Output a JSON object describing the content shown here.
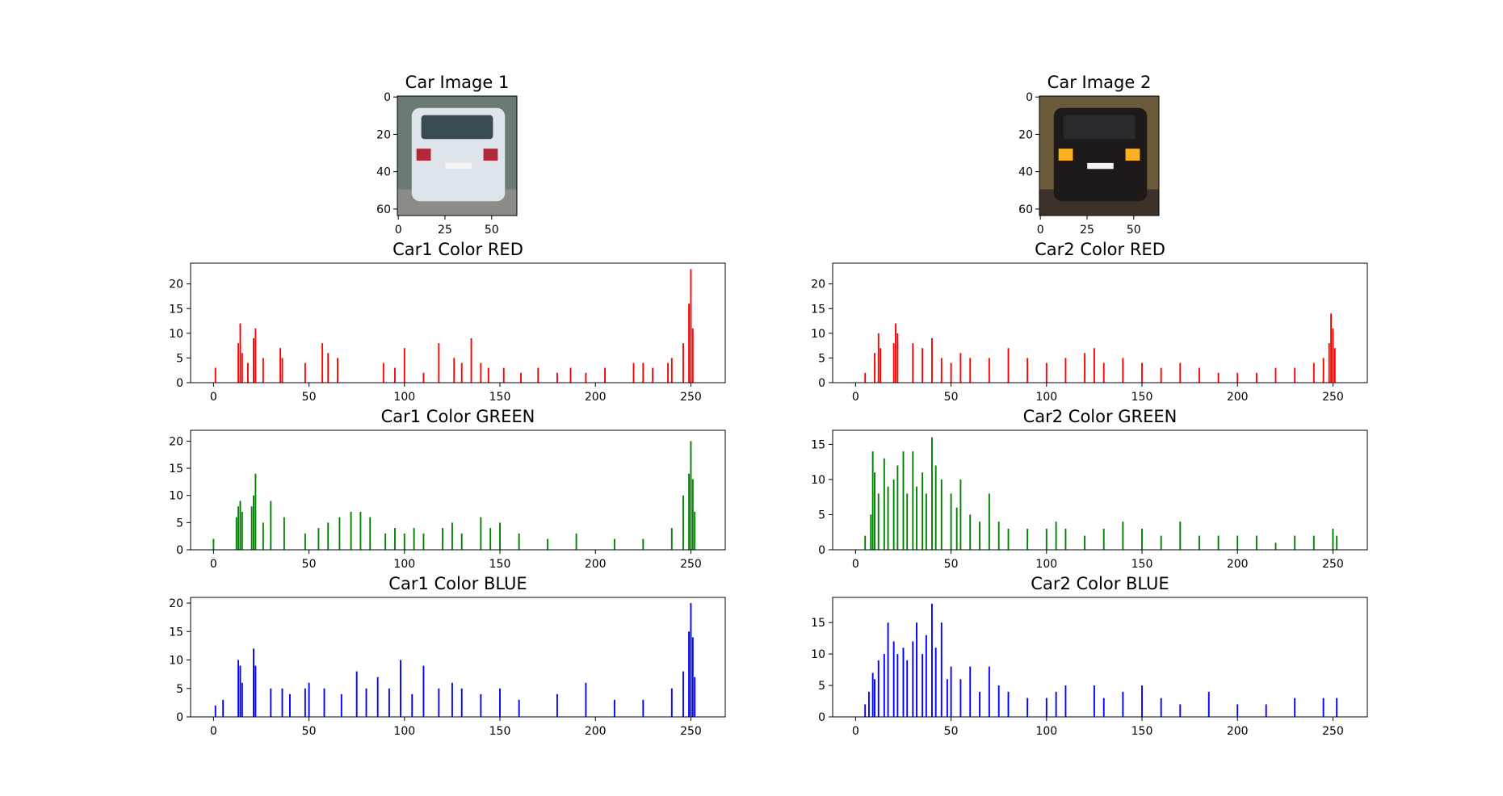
{
  "figure": {
    "images": [
      {
        "title": "Car Image 1",
        "x_ticks": [
          "0",
          "25",
          "50"
        ],
        "y_ticks": [
          "0",
          "20",
          "40",
          "60"
        ],
        "colors": {
          "body": "#dde4ea",
          "background": "#6b7a74",
          "road": "#8a8d86",
          "window": "#3a4a52",
          "light": "#b0283a"
        }
      },
      {
        "title": "Car Image 2",
        "x_ticks": [
          "0",
          "25",
          "50"
        ],
        "y_ticks": [
          "0",
          "20",
          "40",
          "60"
        ],
        "colors": {
          "body": "#1d1a19",
          "background": "#6a5a3a",
          "road": "#3b332b",
          "window": "#2a2a2e",
          "light": "#ffb020"
        }
      }
    ]
  },
  "chart_data": [
    {
      "type": "bar",
      "title": "Car1 Color RED",
      "color": "#ff0000",
      "xlim": [
        -12,
        268
      ],
      "ylim": [
        0,
        24.2
      ],
      "xticks": [
        0,
        50,
        100,
        150,
        200,
        250
      ],
      "yticks": [
        0,
        5,
        10,
        15,
        20
      ],
      "x": [
        1,
        13,
        14,
        15,
        18,
        21,
        22,
        26,
        35,
        36,
        48,
        57,
        60,
        65,
        89,
        95,
        100,
        110,
        118,
        126,
        130,
        135,
        140,
        144,
        152,
        161,
        170,
        180,
        187,
        195,
        205,
        220,
        225,
        230,
        238,
        240,
        246,
        249,
        250,
        251
      ],
      "values": [
        3,
        8,
        12,
        6,
        4,
        9,
        11,
        5,
        7,
        5,
        4,
        8,
        6,
        5,
        4,
        3,
        7,
        2,
        8,
        5,
        4,
        9,
        4,
        3,
        3,
        2,
        3,
        2,
        3,
        2,
        3,
        4,
        4,
        3,
        4,
        5,
        8,
        16,
        23,
        11
      ]
    },
    {
      "type": "bar",
      "title": "Car1 Color GREEN",
      "color": "#008000",
      "xlim": [
        -12,
        268
      ],
      "ylim": [
        0,
        22
      ],
      "xticks": [
        0,
        50,
        100,
        150,
        200,
        250
      ],
      "yticks": [
        0,
        5,
        10,
        15,
        20
      ],
      "x": [
        0,
        12,
        13,
        14,
        15,
        20,
        21,
        22,
        26,
        30,
        37,
        48,
        55,
        60,
        66,
        72,
        77,
        82,
        90,
        95,
        100,
        105,
        110,
        120,
        125,
        130,
        140,
        145,
        150,
        160,
        175,
        190,
        210,
        225,
        240,
        246,
        249,
        250,
        251,
        252
      ],
      "values": [
        2,
        6,
        8,
        9,
        7,
        8,
        10,
        14,
        5,
        9,
        6,
        3,
        4,
        5,
        6,
        7,
        7,
        6,
        3,
        4,
        3,
        4,
        3,
        4,
        5,
        3,
        6,
        4,
        5,
        3,
        2,
        3,
        2,
        2,
        4,
        10,
        14,
        20,
        13,
        7
      ]
    },
    {
      "type": "bar",
      "title": "Car1 Color BLUE",
      "color": "#0000ff",
      "xlim": [
        -12,
        268
      ],
      "ylim": [
        0,
        21
      ],
      "xticks": [
        0,
        50,
        100,
        150,
        200,
        250
      ],
      "yticks": [
        0,
        5,
        10,
        15,
        20
      ],
      "x": [
        1,
        5,
        13,
        14,
        15,
        21,
        22,
        30,
        36,
        40,
        48,
        50,
        58,
        67,
        75,
        80,
        86,
        92,
        98,
        104,
        110,
        118,
        125,
        130,
        140,
        150,
        160,
        180,
        195,
        210,
        225,
        240,
        246,
        249,
        250,
        251,
        252
      ],
      "values": [
        2,
        3,
        10,
        9,
        6,
        12,
        9,
        5,
        5,
        4,
        5,
        6,
        5,
        4,
        8,
        5,
        7,
        5,
        10,
        4,
        9,
        5,
        6,
        5,
        4,
        5,
        3,
        4,
        6,
        3,
        3,
        5,
        8,
        15,
        20,
        14,
        7
      ]
    },
    {
      "type": "bar",
      "title": "Car2 Color RED",
      "color": "#ff0000",
      "xlim": [
        -12,
        268
      ],
      "ylim": [
        0,
        24.2
      ],
      "xticks": [
        0,
        50,
        100,
        150,
        200,
        250
      ],
      "yticks": [
        0,
        5,
        10,
        15,
        20
      ],
      "x": [
        5,
        10,
        12,
        13,
        20,
        21,
        22,
        30,
        35,
        40,
        45,
        50,
        55,
        60,
        70,
        80,
        90,
        100,
        110,
        120,
        125,
        130,
        140,
        150,
        160,
        170,
        180,
        190,
        200,
        210,
        220,
        230,
        240,
        245,
        248,
        249,
        250,
        251
      ],
      "values": [
        2,
        6,
        10,
        7,
        8,
        12,
        10,
        8,
        7,
        9,
        5,
        4,
        6,
        5,
        5,
        7,
        5,
        4,
        5,
        6,
        7,
        4,
        5,
        4,
        3,
        4,
        3,
        2,
        2,
        2,
        3,
        3,
        4,
        5,
        8,
        14,
        11,
        7
      ]
    },
    {
      "type": "bar",
      "title": "Car2 Color GREEN",
      "color": "#008000",
      "xlim": [
        -12,
        268
      ],
      "ylim": [
        0,
        17
      ],
      "xticks": [
        0,
        50,
        100,
        150,
        200,
        250
      ],
      "yticks": [
        0,
        5,
        10,
        15
      ],
      "x": [
        5,
        8,
        9,
        10,
        12,
        15,
        17,
        20,
        22,
        25,
        27,
        30,
        32,
        35,
        37,
        40,
        42,
        45,
        50,
        53,
        55,
        60,
        65,
        70,
        75,
        80,
        90,
        100,
        105,
        110,
        120,
        130,
        140,
        150,
        160,
        170,
        180,
        190,
        200,
        210,
        220,
        230,
        240,
        250,
        252
      ],
      "values": [
        2,
        5,
        14,
        11,
        8,
        13,
        9,
        10,
        12,
        14,
        8,
        14,
        9,
        11,
        8,
        16,
        12,
        10,
        8,
        6,
        10,
        5,
        4,
        8,
        4,
        3,
        3,
        3,
        4,
        3,
        2,
        3,
        4,
        3,
        2,
        4,
        2,
        2,
        2,
        2,
        1,
        2,
        2,
        3,
        2
      ]
    },
    {
      "type": "bar",
      "title": "Car2 Color BLUE",
      "color": "#0000ff",
      "xlim": [
        -12,
        268
      ],
      "ylim": [
        0,
        19
      ],
      "xticks": [
        0,
        50,
        100,
        150,
        200,
        250
      ],
      "yticks": [
        0,
        5,
        10,
        15
      ],
      "x": [
        5,
        7,
        9,
        10,
        12,
        15,
        17,
        20,
        22,
        25,
        27,
        30,
        32,
        35,
        37,
        40,
        42,
        45,
        48,
        50,
        55,
        60,
        65,
        70,
        75,
        80,
        90,
        100,
        105,
        110,
        125,
        130,
        140,
        150,
        160,
        170,
        185,
        200,
        215,
        230,
        245,
        252
      ],
      "values": [
        2,
        4,
        7,
        6,
        9,
        10,
        15,
        12,
        10,
        11,
        9,
        12,
        15,
        10,
        13,
        18,
        11,
        15,
        6,
        8,
        6,
        8,
        4,
        8,
        5,
        4,
        3,
        3,
        4,
        5,
        5,
        3,
        4,
        5,
        3,
        2,
        4,
        2,
        2,
        3,
        3,
        3
      ]
    }
  ]
}
